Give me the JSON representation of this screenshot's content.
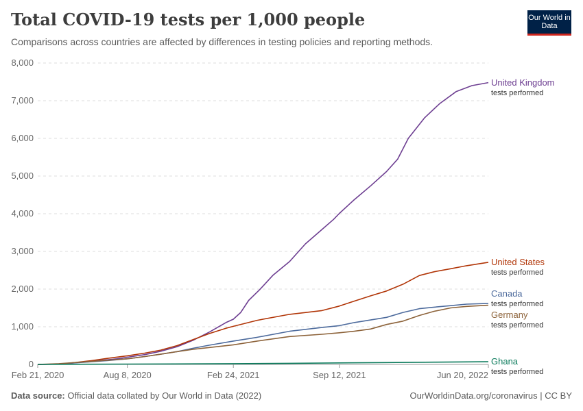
{
  "header": {
    "title": "Total COVID-19 tests per 1,000 people",
    "subtitle": "Comparisons across countries are affected by differences in testing policies and reporting methods.",
    "logo": "Our World in Data"
  },
  "footer": {
    "source_label": "Data source:",
    "source_text": "Official data collated by Our World in Data (2022)",
    "credit": "OurWorldinData.org/coronavirus | CC BY"
  },
  "chart_data": {
    "type": "line",
    "title": "Total COVID-19 tests per 1,000 people",
    "subtitle": "Comparisons across countries are affected by differences in testing policies and reporting methods.",
    "x_range": [
      "2020-02-21",
      "2022-06-20"
    ],
    "ylim": [
      0,
      8000
    ],
    "y_ticks": [
      0,
      1000,
      2000,
      3000,
      4000,
      5000,
      6000,
      7000,
      8000
    ],
    "y_tick_labels": [
      "0",
      "1,000",
      "2,000",
      "3,000",
      "4,000",
      "5,000",
      "6,000",
      "7,000",
      "8,000"
    ],
    "x_ticks": [
      "2020-02-21",
      "2020-08-08",
      "2021-02-24",
      "2021-09-12",
      "2022-06-20"
    ],
    "x_tick_labels": [
      "Feb 21, 2020",
      "Aug 8, 2020",
      "Feb 24, 2021",
      "Sep 12, 2021",
      "Jun 20, 2022"
    ],
    "grid": "horizontal dashed",
    "legend": "line-end labels on right",
    "series": [
      {
        "name": "United Kingdom",
        "sublabel": "tests performed",
        "color": "#6d3e91",
        "points": [
          [
            "2020-02-21",
            0
          ],
          [
            "2020-03-20",
            5
          ],
          [
            "2020-04-20",
            30
          ],
          [
            "2020-05-20",
            70
          ],
          [
            "2020-06-20",
            110
          ],
          [
            "2020-07-20",
            150
          ],
          [
            "2020-08-08",
            190
          ],
          [
            "2020-09-10",
            260
          ],
          [
            "2020-10-10",
            350
          ],
          [
            "2020-11-10",
            470
          ],
          [
            "2020-12-10",
            640
          ],
          [
            "2021-01-10",
            860
          ],
          [
            "2021-02-10",
            1110
          ],
          [
            "2021-02-24",
            1200
          ],
          [
            "2021-03-10",
            1380
          ],
          [
            "2021-03-25",
            1700
          ],
          [
            "2021-04-15",
            1990
          ],
          [
            "2021-05-10",
            2370
          ],
          [
            "2021-06-10",
            2730
          ],
          [
            "2021-07-10",
            3200
          ],
          [
            "2021-08-10",
            3580
          ],
          [
            "2021-09-01",
            3850
          ],
          [
            "2021-09-12",
            4010
          ],
          [
            "2021-10-10",
            4370
          ],
          [
            "2021-11-10",
            4740
          ],
          [
            "2021-12-10",
            5120
          ],
          [
            "2021-12-31",
            5450
          ],
          [
            "2022-01-20",
            6000
          ],
          [
            "2022-02-20",
            6550
          ],
          [
            "2022-03-20",
            6920
          ],
          [
            "2022-04-20",
            7240
          ],
          [
            "2022-05-20",
            7400
          ],
          [
            "2022-06-20",
            7480
          ]
        ]
      },
      {
        "name": "United States",
        "sublabel": "tests performed",
        "color": "#b13507",
        "points": [
          [
            "2020-02-21",
            0
          ],
          [
            "2020-04-01",
            10
          ],
          [
            "2020-05-01",
            50
          ],
          [
            "2020-06-01",
            100
          ],
          [
            "2020-07-01",
            160
          ],
          [
            "2020-08-08",
            230
          ],
          [
            "2020-09-10",
            300
          ],
          [
            "2020-10-10",
            380
          ],
          [
            "2020-11-10",
            500
          ],
          [
            "2020-12-10",
            660
          ],
          [
            "2021-01-10",
            820
          ],
          [
            "2021-02-10",
            960
          ],
          [
            "2021-02-24",
            1010
          ],
          [
            "2021-04-10",
            1170
          ],
          [
            "2021-06-10",
            1330
          ],
          [
            "2021-08-10",
            1430
          ],
          [
            "2021-09-12",
            1550
          ],
          [
            "2021-10-10",
            1680
          ],
          [
            "2021-11-10",
            1820
          ],
          [
            "2021-12-10",
            1950
          ],
          [
            "2022-01-10",
            2130
          ],
          [
            "2022-02-10",
            2360
          ],
          [
            "2022-03-10",
            2460
          ],
          [
            "2022-04-10",
            2540
          ],
          [
            "2022-05-10",
            2620
          ],
          [
            "2022-06-20",
            2710
          ]
        ]
      },
      {
        "name": "Canada",
        "sublabel": "tests performed",
        "color": "#4c6a9c",
        "points": [
          [
            "2020-02-21",
            0
          ],
          [
            "2020-04-01",
            10
          ],
          [
            "2020-05-01",
            40
          ],
          [
            "2020-06-01",
            70
          ],
          [
            "2020-07-01",
            100
          ],
          [
            "2020-08-08",
            150
          ],
          [
            "2020-09-10",
            210
          ],
          [
            "2020-10-10",
            270
          ],
          [
            "2020-11-10",
            340
          ],
          [
            "2020-12-10",
            430
          ],
          [
            "2021-01-10",
            510
          ],
          [
            "2021-02-24",
            620
          ],
          [
            "2021-04-10",
            720
          ],
          [
            "2021-06-10",
            880
          ],
          [
            "2021-08-10",
            980
          ],
          [
            "2021-09-12",
            1030
          ],
          [
            "2021-10-10",
            1110
          ],
          [
            "2021-11-10",
            1180
          ],
          [
            "2021-12-10",
            1250
          ],
          [
            "2022-01-10",
            1380
          ],
          [
            "2022-02-10",
            1480
          ],
          [
            "2022-03-10",
            1520
          ],
          [
            "2022-04-10",
            1560
          ],
          [
            "2022-05-10",
            1600
          ],
          [
            "2022-06-20",
            1620
          ]
        ]
      },
      {
        "name": "Germany",
        "sublabel": "tests performed",
        "color": "#8c6239",
        "points": [
          [
            "2020-02-21",
            0
          ],
          [
            "2020-04-01",
            20
          ],
          [
            "2020-05-01",
            50
          ],
          [
            "2020-06-01",
            80
          ],
          [
            "2020-07-01",
            110
          ],
          [
            "2020-08-08",
            150
          ],
          [
            "2020-09-10",
            210
          ],
          [
            "2020-10-10",
            270
          ],
          [
            "2020-11-10",
            340
          ],
          [
            "2020-12-10",
            400
          ],
          [
            "2021-01-10",
            450
          ],
          [
            "2021-02-24",
            520
          ],
          [
            "2021-04-10",
            620
          ],
          [
            "2021-06-10",
            740
          ],
          [
            "2021-08-10",
            800
          ],
          [
            "2021-09-12",
            840
          ],
          [
            "2021-10-10",
            880
          ],
          [
            "2021-11-10",
            940
          ],
          [
            "2021-12-10",
            1060
          ],
          [
            "2022-01-10",
            1150
          ],
          [
            "2022-02-10",
            1300
          ],
          [
            "2022-03-10",
            1410
          ],
          [
            "2022-04-10",
            1500
          ],
          [
            "2022-05-10",
            1540
          ],
          [
            "2022-06-20",
            1570
          ]
        ]
      },
      {
        "name": "Ghana",
        "sublabel": "tests performed",
        "color": "#0a7a5b",
        "points": [
          [
            "2020-02-21",
            0
          ],
          [
            "2020-06-01",
            5
          ],
          [
            "2020-08-08",
            10
          ],
          [
            "2020-12-10",
            15
          ],
          [
            "2021-02-24",
            20
          ],
          [
            "2021-06-10",
            30
          ],
          [
            "2021-09-12",
            40
          ],
          [
            "2021-12-10",
            50
          ],
          [
            "2022-03-10",
            60
          ],
          [
            "2022-06-20",
            70
          ]
        ]
      }
    ]
  }
}
